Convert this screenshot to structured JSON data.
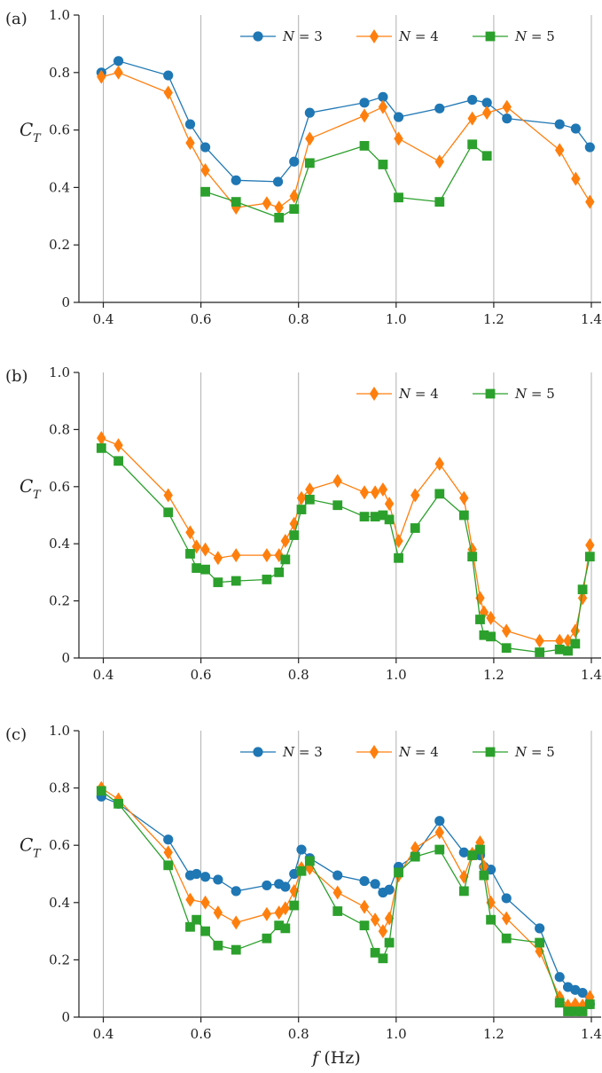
{
  "chart_data": [
    {
      "type": "line",
      "panel_label": "(a)",
      "ylabel": "C",
      "ylabel_sub": "T",
      "xlabel": "",
      "xlim": [
        0.35,
        1.42
      ],
      "ylim": [
        0,
        1.0
      ],
      "xticks": [
        "0.4",
        "0.6",
        "0.8",
        "1.0",
        "1.2",
        "1.4"
      ],
      "yticks": [
        "0",
        "0.2",
        "0.4",
        "0.6",
        "0.8",
        "1.0"
      ],
      "grid": "vertical",
      "legend_placement": "top-right",
      "series": [
        {
          "name": "N = 3",
          "color": "#1f77b4",
          "marker": "circle",
          "x": [
            0.396,
            0.431,
            0.533,
            0.578,
            0.609,
            0.672,
            0.758,
            0.791,
            0.823,
            0.935,
            0.973,
            1.005,
            1.089,
            1.156,
            1.186,
            1.227,
            1.335,
            1.368,
            1.397
          ],
          "y": [
            0.8,
            0.84,
            0.79,
            0.62,
            0.54,
            0.425,
            0.42,
            0.49,
            0.66,
            0.695,
            0.715,
            0.645,
            0.675,
            0.705,
            0.695,
            0.64,
            0.62,
            0.605,
            0.54
          ]
        },
        {
          "name": "N = 4",
          "color": "#ff7f0e",
          "marker": "diamond",
          "x": [
            0.396,
            0.431,
            0.533,
            0.578,
            0.609,
            0.672,
            0.735,
            0.76,
            0.791,
            0.823,
            0.935,
            0.973,
            1.005,
            1.089,
            1.156,
            1.186,
            1.227,
            1.335,
            1.368,
            1.397
          ],
          "y": [
            0.785,
            0.8,
            0.73,
            0.555,
            0.46,
            0.33,
            0.345,
            0.33,
            0.37,
            0.57,
            0.65,
            0.68,
            0.57,
            0.49,
            0.64,
            0.66,
            0.68,
            0.53,
            0.43,
            0.35
          ]
        },
        {
          "name": "N = 5",
          "color": "#2ca02c",
          "marker": "square",
          "x": [
            0.609,
            0.672,
            0.76,
            0.791,
            0.823,
            0.935,
            0.973,
            1.005,
            1.089,
            1.156,
            1.186
          ],
          "y": [
            0.385,
            0.35,
            0.295,
            0.325,
            0.485,
            0.545,
            0.48,
            0.365,
            0.35,
            0.55,
            0.51
          ]
        }
      ]
    },
    {
      "type": "line",
      "panel_label": "(b)",
      "ylabel": "C",
      "ylabel_sub": "T",
      "xlabel": "",
      "xlim": [
        0.35,
        1.42
      ],
      "ylim": [
        0,
        1.0
      ],
      "xticks": [
        "0.4",
        "0.6",
        "0.8",
        "1.0",
        "1.2",
        "1.4"
      ],
      "yticks": [
        "0",
        "0.2",
        "0.4",
        "0.6",
        "0.8",
        "1.0"
      ],
      "grid": "vertical",
      "legend_placement": "top-right",
      "series": [
        {
          "name": "N = 4",
          "color": "#ff7f0e",
          "marker": "diamond",
          "x": [
            0.396,
            0.431,
            0.533,
            0.578,
            0.591,
            0.609,
            0.635,
            0.672,
            0.735,
            0.76,
            0.773,
            0.791,
            0.806,
            0.823,
            0.88,
            0.935,
            0.957,
            0.973,
            0.986,
            1.005,
            1.039,
            1.089,
            1.139,
            1.156,
            1.172,
            1.18,
            1.194,
            1.226,
            1.294,
            1.335,
            1.352,
            1.367,
            1.382,
            1.397
          ],
          "y": [
            0.77,
            0.745,
            0.57,
            0.44,
            0.39,
            0.38,
            0.35,
            0.36,
            0.36,
            0.36,
            0.41,
            0.47,
            0.56,
            0.59,
            0.62,
            0.58,
            0.58,
            0.59,
            0.54,
            0.41,
            0.57,
            0.68,
            0.56,
            0.38,
            0.21,
            0.16,
            0.14,
            0.095,
            0.06,
            0.06,
            0.06,
            0.095,
            0.21,
            0.395
          ]
        },
        {
          "name": "N = 5",
          "color": "#2ca02c",
          "marker": "square",
          "x": [
            0.396,
            0.431,
            0.533,
            0.578,
            0.591,
            0.609,
            0.635,
            0.672,
            0.735,
            0.76,
            0.773,
            0.791,
            0.806,
            0.823,
            0.88,
            0.935,
            0.957,
            0.973,
            0.986,
            1.005,
            1.039,
            1.089,
            1.139,
            1.156,
            1.172,
            1.18,
            1.194,
            1.226,
            1.294,
            1.335,
            1.352,
            1.367,
            1.382,
            1.397
          ],
          "y": [
            0.735,
            0.69,
            0.51,
            0.365,
            0.315,
            0.31,
            0.265,
            0.27,
            0.275,
            0.3,
            0.345,
            0.43,
            0.52,
            0.555,
            0.535,
            0.495,
            0.495,
            0.5,
            0.485,
            0.35,
            0.455,
            0.575,
            0.5,
            0.355,
            0.135,
            0.08,
            0.075,
            0.035,
            0.02,
            0.03,
            0.025,
            0.05,
            0.24,
            0.355
          ]
        }
      ]
    },
    {
      "type": "line",
      "panel_label": "(c)",
      "ylabel": "C",
      "ylabel_sub": "T",
      "xlabel": "f (Hz)",
      "xlim": [
        0.35,
        1.42
      ],
      "ylim": [
        0,
        1.0
      ],
      "xticks": [
        "0.4",
        "0.6",
        "0.8",
        "1.0",
        "1.2",
        "1.4"
      ],
      "yticks": [
        "0",
        "0.2",
        "0.4",
        "0.6",
        "0.8",
        "1.0"
      ],
      "grid": "vertical",
      "legend_placement": "top-right",
      "series": [
        {
          "name": "N = 3",
          "color": "#1f77b4",
          "marker": "circle",
          "x": [
            0.396,
            0.431,
            0.533,
            0.578,
            0.591,
            0.609,
            0.635,
            0.672,
            0.735,
            0.76,
            0.773,
            0.791,
            0.806,
            0.823,
            0.88,
            0.935,
            0.957,
            0.973,
            0.986,
            1.005,
            1.039,
            1.089,
            1.139,
            1.156,
            1.172,
            1.18,
            1.194,
            1.226,
            1.294,
            1.335,
            1.352,
            1.367,
            1.382,
            1.397
          ],
          "y": [
            0.77,
            0.745,
            0.62,
            0.495,
            0.5,
            0.49,
            0.48,
            0.44,
            0.46,
            0.465,
            0.455,
            0.5,
            0.585,
            0.555,
            0.495,
            0.475,
            0.465,
            0.435,
            0.445,
            0.525,
            0.565,
            0.685,
            0.575,
            0.565,
            0.565,
            0.525,
            0.515,
            0.415,
            0.31,
            0.14,
            0.105,
            0.095,
            0.085,
            0.045
          ]
        },
        {
          "name": "N = 4",
          "color": "#ff7f0e",
          "marker": "diamond",
          "x": [
            0.396,
            0.431,
            0.533,
            0.578,
            0.609,
            0.635,
            0.672,
            0.735,
            0.76,
            0.773,
            0.791,
            0.806,
            0.823,
            0.88,
            0.935,
            0.957,
            0.973,
            0.986,
            1.005,
            1.039,
            1.089,
            1.139,
            1.156,
            1.172,
            1.18,
            1.194,
            1.226,
            1.294,
            1.335,
            1.352,
            1.367,
            1.382,
            1.397
          ],
          "y": [
            0.8,
            0.76,
            0.575,
            0.41,
            0.4,
            0.365,
            0.33,
            0.36,
            0.365,
            0.38,
            0.44,
            0.52,
            0.52,
            0.435,
            0.385,
            0.34,
            0.3,
            0.345,
            0.495,
            0.59,
            0.645,
            0.49,
            0.57,
            0.61,
            0.525,
            0.4,
            0.345,
            0.23,
            0.07,
            0.04,
            0.045,
            0.04,
            0.07
          ]
        },
        {
          "name": "N = 5",
          "color": "#2ca02c",
          "marker": "square",
          "x": [
            0.396,
            0.431,
            0.533,
            0.578,
            0.591,
            0.609,
            0.635,
            0.672,
            0.735,
            0.76,
            0.773,
            0.791,
            0.806,
            0.823,
            0.88,
            0.935,
            0.957,
            0.973,
            0.986,
            1.005,
            1.039,
            1.089,
            1.139,
            1.156,
            1.172,
            1.18,
            1.194,
            1.226,
            1.294,
            1.335,
            1.352,
            1.367,
            1.382,
            1.397
          ],
          "y": [
            0.79,
            0.745,
            0.53,
            0.315,
            0.34,
            0.3,
            0.25,
            0.235,
            0.275,
            0.32,
            0.31,
            0.39,
            0.51,
            0.545,
            0.37,
            0.32,
            0.225,
            0.205,
            0.26,
            0.505,
            0.56,
            0.585,
            0.44,
            0.565,
            0.585,
            0.495,
            0.34,
            0.275,
            0.26,
            0.05,
            0.02,
            0.02,
            0.02,
            0.045
          ]
        }
      ]
    }
  ]
}
